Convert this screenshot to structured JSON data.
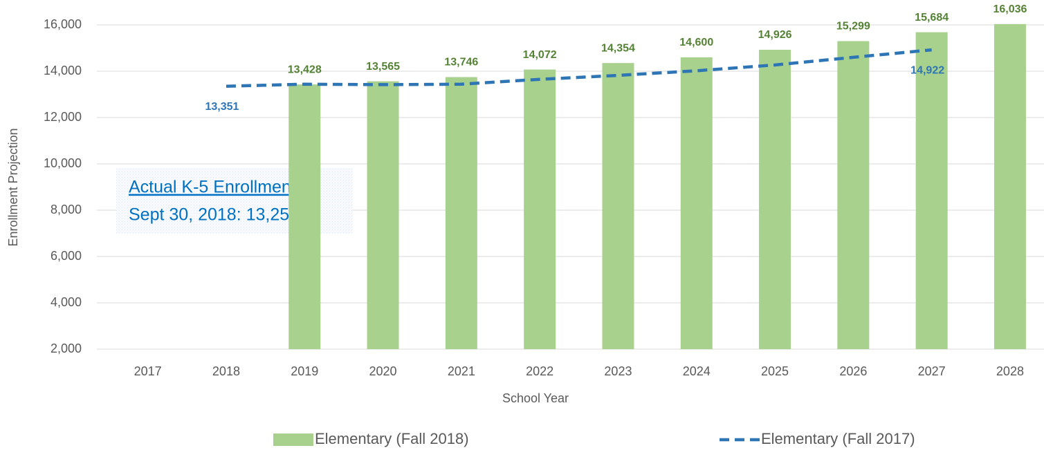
{
  "chart_data": {
    "type": "bar_line",
    "x_label": "School Year",
    "y_label": "Enrollment Projection",
    "categories": [
      "2017",
      "2018",
      "2019",
      "2020",
      "2021",
      "2022",
      "2023",
      "2024",
      "2025",
      "2026",
      "2027",
      "2028"
    ],
    "series": [
      {
        "name": "Elementary (Fall 2018)",
        "type": "bar",
        "color": "#a9d18e",
        "label_color": "#548235",
        "values": [
          null,
          null,
          13428,
          13565,
          13746,
          14072,
          14354,
          14600,
          14926,
          15299,
          15684,
          16036
        ],
        "value_labels": [
          null,
          null,
          "13,428",
          "13,565",
          "13,746",
          "14,072",
          "14,354",
          "14,600",
          "14,926",
          "15,299",
          "15,684",
          "16,036"
        ]
      },
      {
        "name": "Elementary (Fall 2017)",
        "type": "line",
        "dashed": true,
        "color": "#2e75b6",
        "label_color": "#2e75b6",
        "values": [
          null,
          13351,
          13440,
          13420,
          13440,
          13650,
          13820,
          14020,
          14270,
          14600,
          14922,
          null
        ],
        "value_labels": [
          null,
          "13,351",
          null,
          null,
          null,
          null,
          null,
          null,
          null,
          null,
          "14,922",
          null
        ]
      }
    ],
    "ylim": [
      2000,
      16000
    ],
    "yticks": [
      {
        "value": 2000,
        "label": "2,000"
      },
      {
        "value": 4000,
        "label": "4,000"
      },
      {
        "value": 6000,
        "label": "6,000"
      },
      {
        "value": 8000,
        "label": "8,000"
      },
      {
        "value": 10000,
        "label": "10,000"
      },
      {
        "value": 12000,
        "label": "12,000"
      },
      {
        "value": 14000,
        "label": "14,000"
      },
      {
        "value": 16000,
        "label": "16,000"
      }
    ],
    "grid": true,
    "legend": "bottom",
    "annotation": {
      "title": "Actual K-5 Enrollment",
      "text": "Sept 30, 2018:  13,258"
    }
  }
}
